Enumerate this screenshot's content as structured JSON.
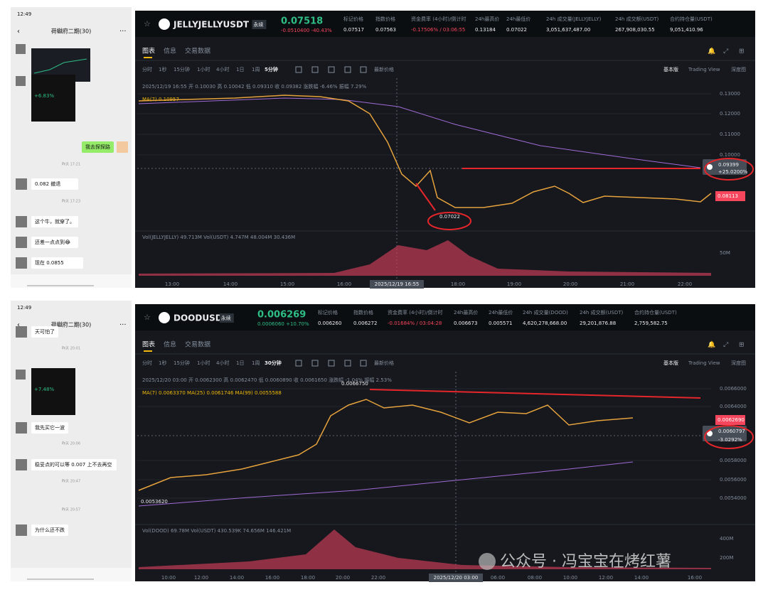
{
  "top": {
    "chat": {
      "time": "12:49",
      "title": "荷樾府二期(30)",
      "card_change": "+6.83%",
      "messages": [
        "我去探探路",
        "0.082 撤退",
        "这个牛，就穿了。",
        "还差一点点到😂",
        "现在 0.0855"
      ],
      "timestamps": [
        "昨天 17:21",
        "昨天 17:23"
      ]
    },
    "market": {
      "symbol": "JELLYJELLYUSDT",
      "contract": "永续",
      "price": "0.07518",
      "change": "-0.0510400 -40.43%",
      "stats": [
        {
          "label": "标记价格",
          "value": "0.07517"
        },
        {
          "label": "指数价格",
          "value": "0.07563"
        },
        {
          "label": "资金费率 (4小时)/倒计时",
          "value": "-0.17506% / 03:06:55"
        },
        {
          "label": "24h最高价",
          "value": "0.13184"
        },
        {
          "label": "24h最低价",
          "value": "0.07022"
        },
        {
          "label": "24h 成交量(JELLYJELLY)",
          "value": "3,051,637,487.00"
        },
        {
          "label": "24h 成交额(USDT)",
          "value": "267,908,030.55"
        },
        {
          "label": "合约持仓量(USDT)",
          "value": "9,051,410.96"
        }
      ],
      "tabs": [
        "图表",
        "信息",
        "交易数据"
      ],
      "intervals": [
        "分时",
        "1秒",
        "15分钟",
        "1小时",
        "4小时",
        "1日",
        "1周",
        "5分钟"
      ],
      "price_type": "最新价格",
      "views": [
        "基本版",
        "Trading View",
        "深度图"
      ],
      "ohlc": "2025/12/19 16:55 开 0.10030 高 0.10042 低 0.09310 收 0.09382 涨跌幅 -6.46% 振幅 7.29%",
      "ma": "MA(7) 0.10957",
      "price_axis": [
        "0.13000",
        "0.12000",
        "0.11000",
        "0.10000"
      ],
      "mark_price": "0.09399",
      "mark_change": "+25.0200%",
      "last_price": "0.08113",
      "notes": [
        "0.07022"
      ],
      "volume": "Vol(JELLYJELLY) 49.713M Vol(USDT) 4.747M 48.004M 30.436M",
      "volume_axis": [
        "50M"
      ],
      "time_axis": [
        "13:00",
        "14:00",
        "15:00",
        "16:00",
        "18:00",
        "19:00",
        "20:00",
        "21:00",
        "22:00"
      ],
      "crosshair_time": "2025/12/19 16:55"
    }
  },
  "bottom": {
    "chat": {
      "time": "12:49",
      "title": "荷樾府二期(30)",
      "card_change": "+7.48%",
      "messages": [
        "天可怕了",
        "我先买它一波",
        "稳妥点的可以等 0.007 上不去再空",
        "为什么还不跌"
      ],
      "timestamps": [
        "昨天 20:01",
        "昨天 20:06",
        "昨天 20:47",
        "昨天 20:57"
      ]
    },
    "market": {
      "symbol": "DOODUSDT",
      "contract": "永续",
      "price": "0.006269",
      "change": "0.0006060 +10.70%",
      "stats": [
        {
          "label": "标记价格",
          "value": "0.006260"
        },
        {
          "label": "指数价格",
          "value": "0.006272"
        },
        {
          "label": "资金费率 (4小时)/倒计时",
          "value": "-0.01684% / 03:04:28"
        },
        {
          "label": "24h最高价",
          "value": "0.006673"
        },
        {
          "label": "24h最低价",
          "value": "0.005571"
        },
        {
          "label": "24h 成交量(DOOD)",
          "value": "4,620,278,668.00"
        },
        {
          "label": "24h 成交额(USDT)",
          "value": "29,201,876.88"
        },
        {
          "label": "合约持仓量(USDT)",
          "value": "2,759,582.75"
        }
      ],
      "tabs": [
        "图表",
        "信息",
        "交易数据"
      ],
      "intervals": [
        "分时",
        "1秒",
        "15分钟",
        "1小时",
        "4小时",
        "1日",
        "1周",
        "30分钟"
      ],
      "price_type": "最新价格",
      "views": [
        "基本版",
        "Trading View",
        "深度图"
      ],
      "ohlc": "2025/12/20 03:00 开 0.0062300 高 0.0062470 低 0.0060890 收 0.0061650 涨跌幅 -1.04% 振幅 2.53%",
      "ma": "MA(7) 0.0063370 MA(25) 0.0061746 MA(99) 0.0055588",
      "price_axis": [
        "0.0066000",
        "0.0064000",
        "0.0058000",
        "0.0056000",
        "0.0054000"
      ],
      "mark_price": "0.0060797",
      "mark_change": "-3.0292%",
      "last_price": "0.0062690",
      "notes": [
        "0.0066750",
        "0.0053620"
      ],
      "volume": "Vol(DOOD) 69.78M Vol(USDT) 430.539K 74.656M 146.421M",
      "volume_axis": [
        "400M",
        "200M"
      ],
      "time_axis": [
        "10:00",
        "12:00",
        "14:00",
        "16:00",
        "18:00",
        "20:00",
        "22:00",
        "06:00",
        "08:00",
        "10:00",
        "12:00",
        "14:00",
        "16:00"
      ],
      "crosshair_time": "2025/12/20 03:00"
    }
  },
  "watermark": "公众号 · 冯宝宝在烤红薯"
}
